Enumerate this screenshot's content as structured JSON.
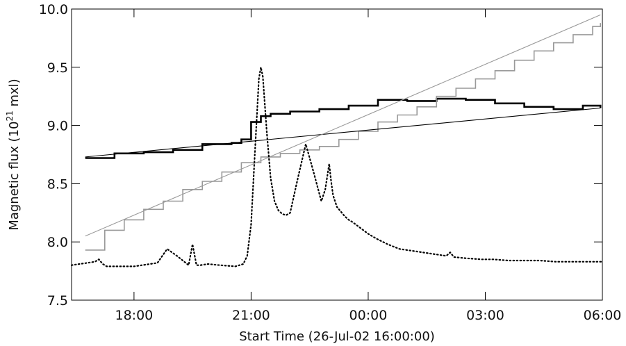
{
  "chart_data": {
    "type": "line",
    "title": "",
    "xlabel": "Start Time (26-Jul-02 16:00:00)",
    "ylabel_parts": {
      "prefix": "Magnetic flux (10",
      "superscript": "21",
      "suffix": " mxl)"
    },
    "x_unit": "hours after 26-Jul-02 16:00:00",
    "xlim": [
      0.4,
      14.0
    ],
    "ylim": [
      7.5,
      10.0
    ],
    "x_ticks": [
      {
        "value": 2,
        "label": "18:00"
      },
      {
        "value": 5,
        "label": "21:00"
      },
      {
        "value": 8,
        "label": "00:00"
      },
      {
        "value": 11,
        "label": "03:00"
      },
      {
        "value": 14,
        "label": "06:00"
      }
    ],
    "y_ticks": [
      {
        "value": 7.5,
        "label": "7.5"
      },
      {
        "value": 8.0,
        "label": "8.0"
      },
      {
        "value": 8.5,
        "label": "8.5"
      },
      {
        "value": 9.0,
        "label": "9.0"
      },
      {
        "value": 9.5,
        "label": "9.5"
      },
      {
        "value": 10.0,
        "label": "10.0"
      }
    ],
    "grid": false,
    "series": [
      {
        "style": "step",
        "color": "#000000",
        "width": 2.6,
        "x": [
          0.75,
          1.5,
          2.25,
          3.0,
          3.75,
          4.5,
          4.75,
          5.0,
          5.25,
          5.5,
          6.0,
          6.75,
          7.5,
          8.25,
          9.0,
          9.75,
          10.5,
          11.25,
          12.0,
          12.75,
          13.5,
          13.95
        ],
        "y": [
          8.72,
          8.76,
          8.77,
          8.79,
          8.84,
          8.85,
          8.88,
          9.03,
          9.08,
          9.1,
          9.12,
          9.14,
          9.17,
          9.22,
          9.21,
          9.23,
          9.22,
          9.19,
          9.16,
          9.14,
          9.17,
          9.15
        ]
      },
      {
        "style": "step",
        "color": "#999999",
        "width": 1.6,
        "x": [
          0.75,
          1.25,
          1.75,
          2.25,
          2.75,
          3.25,
          3.75,
          4.25,
          4.75,
          5.25,
          5.75,
          6.25,
          6.75,
          7.25,
          7.75,
          8.25,
          8.75,
          9.25,
          9.75,
          10.25,
          10.75,
          11.25,
          11.75,
          12.25,
          12.75,
          13.25,
          13.75,
          13.95
        ],
        "y": [
          7.93,
          8.1,
          8.19,
          8.28,
          8.35,
          8.45,
          8.52,
          8.6,
          8.68,
          8.73,
          8.76,
          8.79,
          8.82,
          8.88,
          8.95,
          9.03,
          9.09,
          9.16,
          9.25,
          9.32,
          9.4,
          9.47,
          9.56,
          9.64,
          9.71,
          9.78,
          9.85,
          9.88
        ]
      },
      {
        "style": "line",
        "color": "#000000",
        "width": 1.1,
        "x": [
          0.75,
          13.95
        ],
        "y": [
          8.73,
          9.15
        ]
      },
      {
        "style": "line",
        "color": "#999999",
        "width": 1.1,
        "x": [
          0.75,
          13.95
        ],
        "y": [
          8.05,
          9.95
        ]
      },
      {
        "style": "dotted",
        "color": "#000000",
        "width": 2.2,
        "x": [
          0.4,
          0.6,
          0.8,
          1.0,
          1.1,
          1.2,
          1.3,
          1.5,
          2.0,
          2.6,
          2.85,
          3.1,
          3.4,
          3.5,
          3.6,
          3.7,
          3.9,
          4.2,
          4.6,
          4.8,
          4.9,
          5.0,
          5.1,
          5.2,
          5.25,
          5.3,
          5.4,
          5.5,
          5.6,
          5.7,
          5.8,
          5.9,
          6.0,
          6.2,
          6.4,
          6.6,
          6.8,
          6.9,
          7.0,
          7.05,
          7.1,
          7.2,
          7.3,
          7.4,
          7.5,
          7.6,
          7.8,
          8.0,
          8.2,
          8.5,
          8.8,
          9.2,
          9.6,
          10.0,
          10.1,
          10.2,
          10.5,
          10.9,
          11.2,
          11.6,
          12.0,
          12.4,
          12.8,
          13.2,
          13.6,
          14.0
        ],
        "y": [
          7.8,
          7.81,
          7.82,
          7.83,
          7.85,
          7.81,
          7.79,
          7.79,
          7.79,
          7.82,
          7.94,
          7.88,
          7.8,
          7.98,
          7.8,
          7.8,
          7.81,
          7.8,
          7.79,
          7.81,
          7.88,
          8.15,
          8.78,
          9.4,
          9.5,
          9.42,
          8.95,
          8.55,
          8.35,
          8.27,
          8.24,
          8.23,
          8.25,
          8.55,
          8.84,
          8.6,
          8.35,
          8.45,
          8.67,
          8.52,
          8.4,
          8.3,
          8.26,
          8.22,
          8.19,
          8.17,
          8.12,
          8.07,
          8.03,
          7.98,
          7.94,
          7.92,
          7.9,
          7.88,
          7.91,
          7.87,
          7.86,
          7.85,
          7.85,
          7.84,
          7.84,
          7.84,
          7.83,
          7.83,
          7.83,
          7.83
        ]
      }
    ]
  }
}
